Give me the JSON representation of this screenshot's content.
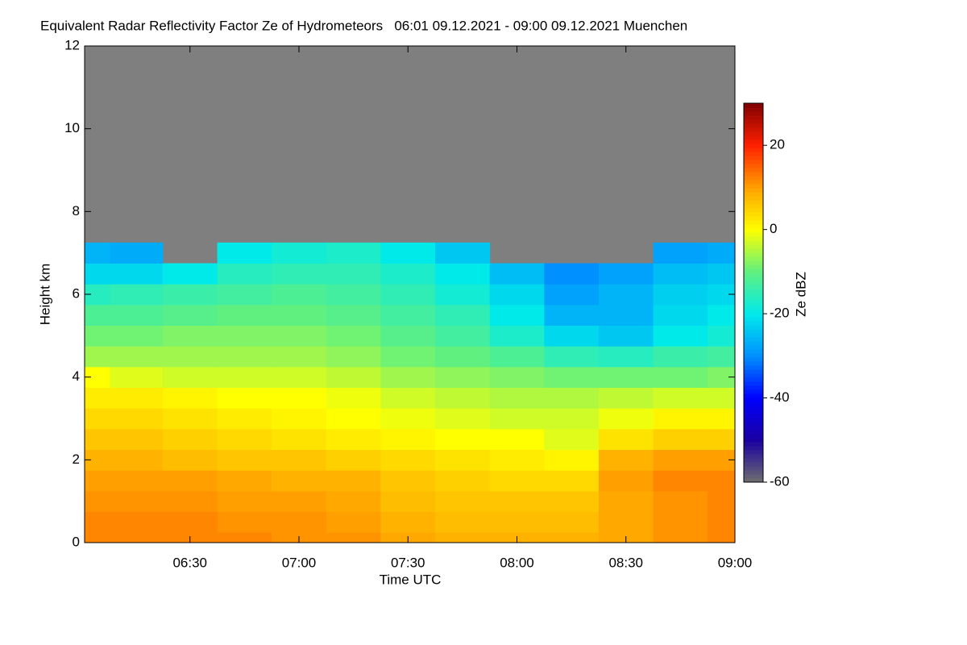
{
  "chart_data": {
    "type": "heatmap",
    "title": "Equivalent Radar Reflectivity Factor Ze of Hydrometeors   06:01 09.12.2021 - 09:00 09.12.2021 Muenchen",
    "x_label": "Time UTC",
    "y_label": "Height km",
    "colorbar_label": "Ze dBZ",
    "x": [
      "06:01",
      "06:15",
      "06:30",
      "06:45",
      "07:00",
      "07:15",
      "07:30",
      "07:45",
      "08:00",
      "08:15",
      "08:30",
      "08:45",
      "09:00"
    ],
    "y": [
      0,
      0.5,
      1,
      1.5,
      2,
      2.5,
      3,
      3.5,
      4,
      4.5,
      5,
      5.5,
      6,
      6.5,
      7
    ],
    "z": [
      [
        12,
        12,
        12,
        12,
        11,
        11,
        9,
        8,
        8,
        8,
        9,
        11,
        12
      ],
      [
        12,
        12,
        12,
        11,
        11,
        10,
        8,
        7,
        7,
        7,
        9,
        11,
        12
      ],
      [
        11,
        11,
        11,
        10,
        10,
        9,
        7,
        6,
        6,
        6,
        9,
        11,
        12
      ],
      [
        10,
        10,
        10,
        9,
        8,
        8,
        6,
        5,
        4,
        4,
        10,
        12,
        12
      ],
      [
        8,
        8,
        7,
        6,
        6,
        5,
        4,
        3,
        2,
        1,
        8,
        10,
        10
      ],
      [
        6,
        6,
        5,
        4,
        3,
        2,
        1,
        0,
        0,
        -2,
        3,
        5,
        5
      ],
      [
        4,
        4,
        3,
        2,
        1,
        0,
        -1,
        -2,
        -3,
        -3,
        -1,
        1,
        1
      ],
      [
        2,
        2,
        1,
        0,
        0,
        -1,
        -3,
        -4,
        -5,
        -5,
        -4,
        -3,
        -3
      ],
      [
        0,
        -2,
        -3,
        -3,
        -3,
        -4,
        -6,
        -7,
        -8,
        -9,
        -9,
        -9,
        -8
      ],
      [
        -6,
        -6,
        -6,
        -6,
        -6,
        -7,
        -9,
        -10,
        -12,
        -15,
        -16,
        -14,
        -13
      ],
      [
        -9,
        -9,
        -8,
        -8,
        -8,
        -9,
        -11,
        -13,
        -17,
        -22,
        -24,
        -20,
        -18
      ],
      [
        -12,
        -12,
        -11,
        -10,
        -10,
        -11,
        -13,
        -15,
        -20,
        -26,
        -26,
        -22,
        -20
      ],
      [
        -16,
        -15,
        -14,
        -13,
        -12,
        -13,
        -15,
        -18,
        -22,
        -28,
        -26,
        -23,
        -22
      ],
      [
        -22,
        -22,
        -20,
        -16,
        -15,
        -15,
        -17,
        -20,
        -25,
        -30,
        -28,
        -25,
        -24
      ],
      [
        -26,
        -27,
        null,
        -20,
        -18,
        -17,
        -20,
        -24,
        null,
        null,
        null,
        -28,
        -27
      ]
    ],
    "xlim": [
      "06:01",
      "09:00"
    ],
    "xticks": [
      "06:30",
      "07:00",
      "07:30",
      "08:00",
      "08:30",
      "09:00"
    ],
    "ylim": [
      0,
      12
    ],
    "yticks": [
      0,
      2,
      4,
      6,
      8,
      10,
      12
    ],
    "clim": [
      -60,
      30
    ],
    "cticks": [
      -60,
      -40,
      -20,
      0,
      20
    ],
    "colorscale": [
      "#6e6e6e",
      "#1a00a0",
      "#0000ff",
      "#0090ff",
      "#00eaea",
      "#60f080",
      "#ffff00",
      "#ffa000",
      "#ff2000",
      "#800000"
    ]
  }
}
